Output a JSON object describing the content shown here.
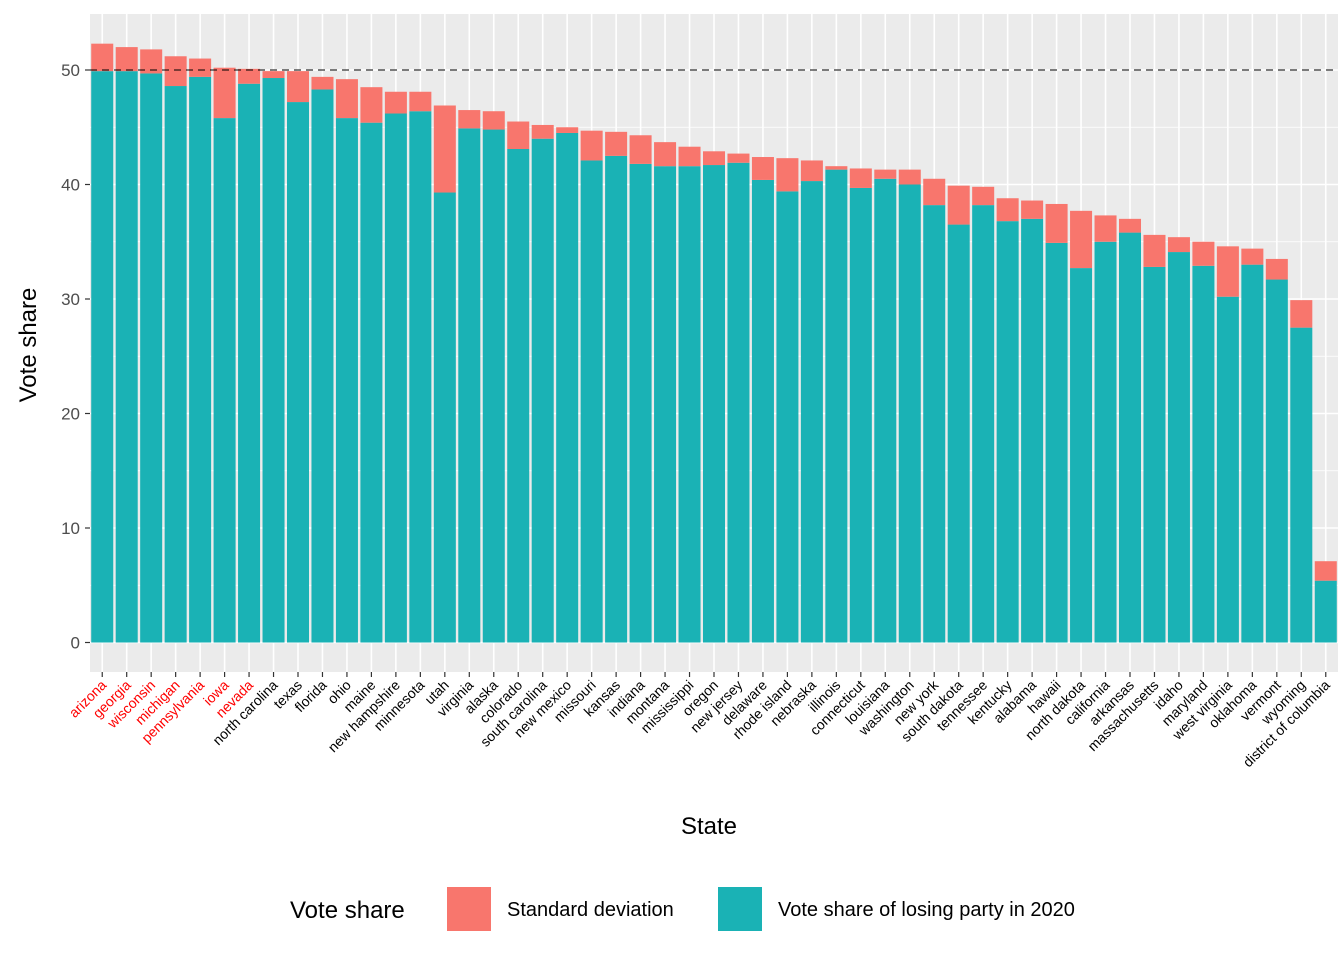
{
  "chart_data": {
    "type": "bar",
    "stacked": true,
    "xlabel": "State",
    "ylabel": "Vote share",
    "ylim": [
      0,
      54
    ],
    "yticks": [
      0,
      10,
      20,
      30,
      40,
      50
    ],
    "reference_line": {
      "y": 50,
      "style": "dashed"
    },
    "grid": true,
    "legend": {
      "title": "Vote share",
      "placement": "bottom",
      "entries": [
        {
          "label": "Standard deviation",
          "color": "#F8766D"
        },
        {
          "label": "Vote share of losing party in 2020",
          "color": "#1AB2B5"
        }
      ]
    },
    "highlight_color": "#FF0000",
    "categories": [
      "arizona",
      "georgia",
      "wisconsin",
      "michigan",
      "pennsylvania",
      "iowa",
      "nevada",
      "north carolina",
      "texas",
      "florida",
      "ohio",
      "maine",
      "new hampshire",
      "minnesota",
      "utah",
      "virginia",
      "alaska",
      "colorado",
      "south carolina",
      "new mexico",
      "missouri",
      "kansas",
      "indiana",
      "montana",
      "mississippi",
      "oregon",
      "new jersey",
      "delaware",
      "rhode island",
      "nebraska",
      "illinois",
      "connecticut",
      "louisiana",
      "washington",
      "new york",
      "south dakota",
      "tennessee",
      "kentucky",
      "alabama",
      "hawaii",
      "north dakota",
      "california",
      "arkansas",
      "massachusetts",
      "idaho",
      "maryland",
      "west virginia",
      "oklahoma",
      "vermont",
      "wyoming",
      "district of columbia"
    ],
    "highlighted_categories": [
      "arizona",
      "georgia",
      "wisconsin",
      "michigan",
      "pennsylvania",
      "iowa",
      "nevada"
    ],
    "series": [
      {
        "name": "Vote share of losing party in 2020",
        "color": "#1AB2B5",
        "values": [
          49.9,
          49.9,
          49.7,
          48.6,
          49.4,
          45.8,
          48.8,
          49.3,
          47.2,
          48.3,
          45.8,
          45.4,
          46.2,
          46.4,
          39.3,
          44.9,
          44.8,
          43.1,
          44.0,
          44.5,
          42.1,
          42.5,
          41.8,
          41.6,
          41.6,
          41.7,
          41.9,
          40.4,
          39.4,
          40.3,
          41.3,
          39.7,
          40.5,
          40.0,
          38.2,
          36.5,
          38.2,
          36.8,
          37.0,
          34.9,
          32.7,
          35.0,
          35.8,
          32.8,
          34.1,
          32.9,
          30.2,
          33.0,
          31.7,
          27.5,
          5.4
        ]
      },
      {
        "name": "Standard deviation",
        "color": "#F8766D",
        "values": [
          2.4,
          2.1,
          2.1,
          2.6,
          1.6,
          4.4,
          1.3,
          0.6,
          2.7,
          1.1,
          3.4,
          3.1,
          1.9,
          1.7,
          7.6,
          1.6,
          1.6,
          2.4,
          1.2,
          0.5,
          2.6,
          2.1,
          2.5,
          2.1,
          1.7,
          1.2,
          0.8,
          2.0,
          2.9,
          1.8,
          0.3,
          1.7,
          0.8,
          1.3,
          2.3,
          3.4,
          1.6,
          2.0,
          1.6,
          3.4,
          5.0,
          2.3,
          1.2,
          2.8,
          1.3,
          2.1,
          4.4,
          1.4,
          1.8,
          2.4,
          1.7
        ]
      }
    ]
  }
}
